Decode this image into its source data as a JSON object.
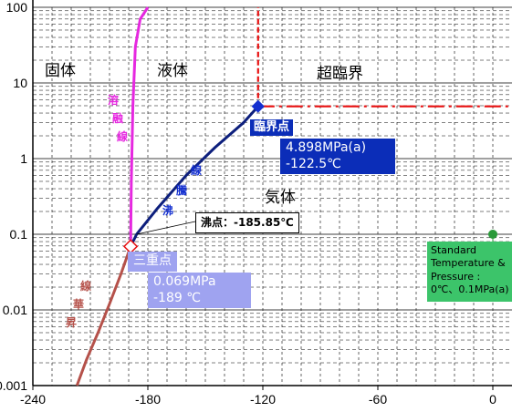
{
  "chart_data": {
    "type": "line",
    "x_ticks": [
      "-240",
      "-180",
      "-120",
      "-60",
      "0"
    ],
    "y_ticks": [
      "100",
      "10",
      "1",
      "0.1",
      "0.01",
      "0.001"
    ],
    "xlim": [
      -240,
      10
    ],
    "ylim": [
      0.001,
      100
    ],
    "y_log": true,
    "grid": true,
    "colors": {
      "melting": "#e628e0",
      "boiling": "#0d1f7d",
      "sublimation": "#b5514a",
      "supercritical": "#e81010",
      "critical_point": "#1430d0",
      "standard_point": "#2a9a3a"
    },
    "curves": {
      "melting": {
        "x": [
          -189,
          -188.6,
          -187.8,
          -186.5,
          -184,
          -180
        ],
        "y": [
          0.069,
          0.5,
          5,
          30,
          70,
          100
        ]
      },
      "boiling": {
        "x": [
          -189,
          -185.85,
          -175,
          -160,
          -145,
          -130,
          -122.5
        ],
        "y": [
          0.069,
          0.1,
          0.22,
          0.6,
          1.4,
          3,
          4.898
        ]
      },
      "sublimation": {
        "x": [
          -189,
          -194,
          -200,
          -206,
          -212,
          -217
        ],
        "y": [
          0.069,
          0.03,
          0.012,
          0.005,
          0.0022,
          0.001
        ]
      },
      "supercritical_vertical": {
        "x": [
          -122.5,
          -122.5
        ],
        "y": [
          4.898,
          100
        ]
      },
      "supercritical_horizontal": {
        "x": [
          -122.5,
          10
        ],
        "y": [
          4.898,
          4.898
        ]
      }
    },
    "points": {
      "triple": {
        "x": -189,
        "y": 0.069
      },
      "critical": {
        "x": -122.5,
        "y": 4.898
      },
      "boiling": {
        "x": -185.85,
        "y": 0.1
      },
      "standard": {
        "x": 0,
        "y": 0.1
      }
    },
    "regions": {
      "solid": "固体",
      "liquid": "液体",
      "supercritical": "超臨界",
      "gas": "気体"
    },
    "curve_labels": {
      "melting": [
        "溶",
        "融",
        "線"
      ],
      "boiling": [
        "沸",
        "騰",
        "線"
      ],
      "sublimation": [
        "昇",
        "華",
        "線"
      ]
    },
    "annotations": {
      "critical_title": "臨界点",
      "critical_pressure": "4.898MPa(a)",
      "critical_temp": "-122.5℃",
      "triple_title": "三重点",
      "triple_pressure": "0.069MPa",
      "triple_temp": "-189 ℃",
      "boiling_point": "沸点：-185.85℃",
      "standard_line1": "Standard",
      "standard_line2": "Temperature &",
      "standard_line3": "Pressure :",
      "standard_line4": "0℃、0.1MPa(a)"
    }
  }
}
